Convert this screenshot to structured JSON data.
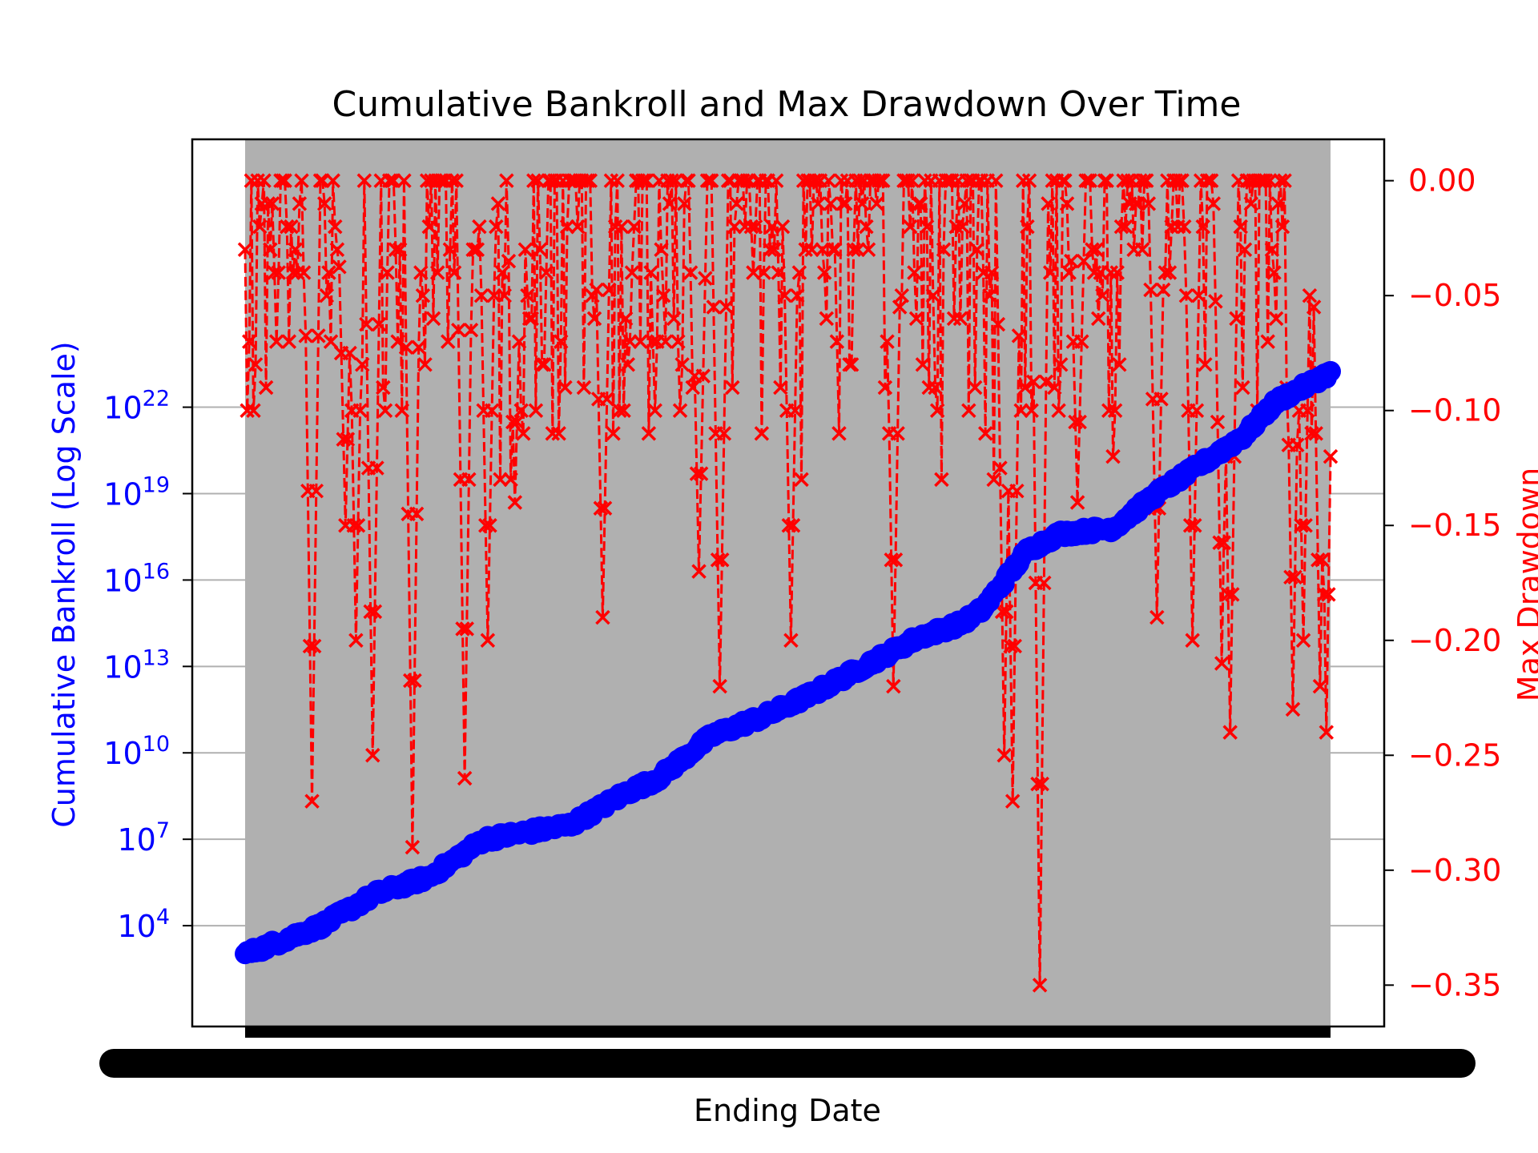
{
  "chart_data": {
    "type": "line",
    "title": "Cumulative Bankroll and Max Drawdown Over Time",
    "xlabel": "Ending Date",
    "ylabel_left": "Cumulative Bankroll (Log Scale)",
    "ylabel_right": "Max Drawdown",
    "left_axis": {
      "scale": "log",
      "color": "#0000ff",
      "ylim_log10": [
        0.5,
        31.3
      ],
      "ticks": [
        {
          "label": "10",
          "exp": "4"
        },
        {
          "label": "10",
          "exp": "7"
        },
        {
          "label": "10",
          "exp": "10"
        },
        {
          "label": "10",
          "exp": "13"
        },
        {
          "label": "10",
          "exp": "16"
        },
        {
          "label": "10",
          "exp": "19"
        },
        {
          "label": "10",
          "exp": "22"
        }
      ]
    },
    "right_axis": {
      "scale": "linear",
      "color": "#ff0000",
      "ylim": [
        -0.368,
        0.018
      ],
      "ticks": [
        "0.00",
        "−0.05",
        "−0.10",
        "−0.15",
        "−0.20",
        "−0.25",
        "−0.30",
        "−0.35"
      ]
    },
    "grid": true,
    "background": "#b0b0b0",
    "series": [
      {
        "role": "cumulative_bankroll",
        "axis": "left",
        "color": "#0000ff",
        "marker": "circle",
        "start_log10": 3.0,
        "end_log10": 23.2,
        "points": 520,
        "anchors_log10": [
          [
            0,
            3.0
          ],
          [
            0.07,
            4.0
          ],
          [
            0.12,
            5.1
          ],
          [
            0.17,
            5.7
          ],
          [
            0.22,
            7.0
          ],
          [
            0.3,
            7.5
          ],
          [
            0.35,
            8.6
          ],
          [
            0.38,
            9.1
          ],
          [
            0.43,
            10.6
          ],
          [
            0.48,
            11.3
          ],
          [
            0.52,
            12.0
          ],
          [
            0.57,
            13.0
          ],
          [
            0.62,
            14.0
          ],
          [
            0.66,
            14.5
          ],
          [
            0.68,
            15.0
          ],
          [
            0.7,
            16.0
          ],
          [
            0.72,
            17.0
          ],
          [
            0.75,
            17.6
          ],
          [
            0.8,
            17.8
          ],
          [
            0.84,
            19.0
          ],
          [
            0.88,
            20.0
          ],
          [
            0.92,
            21.0
          ],
          [
            0.95,
            22.2
          ],
          [
            1.0,
            23.2
          ]
        ]
      },
      {
        "role": "max_drawdown",
        "axis": "right",
        "color": "#ff0000",
        "marker": "x",
        "linestyle": "dashed",
        "range": [
          -0.35,
          0.0
        ],
        "points": 520,
        "deep_dips": [
          [
            0.061,
            -0.27
          ],
          [
            0.093,
            -0.15
          ],
          [
            0.102,
            -0.2
          ],
          [
            0.118,
            -0.25
          ],
          [
            0.155,
            -0.29
          ],
          [
            0.203,
            -0.26
          ],
          [
            0.223,
            -0.2
          ],
          [
            0.248,
            -0.14
          ],
          [
            0.33,
            -0.19
          ],
          [
            0.352,
            -0.08
          ],
          [
            0.419,
            -0.17
          ],
          [
            0.437,
            -0.22
          ],
          [
            0.503,
            -0.2
          ],
          [
            0.597,
            -0.22
          ],
          [
            0.7,
            -0.25
          ],
          [
            0.707,
            -0.27
          ],
          [
            0.732,
            -0.35
          ],
          [
            0.767,
            -0.14
          ],
          [
            0.84,
            -0.19
          ],
          [
            0.872,
            -0.2
          ],
          [
            0.9,
            -0.21
          ],
          [
            0.908,
            -0.24
          ],
          [
            0.965,
            -0.23
          ],
          [
            0.975,
            -0.2
          ],
          [
            0.991,
            -0.22
          ],
          [
            0.997,
            -0.24
          ]
        ]
      }
    ]
  }
}
